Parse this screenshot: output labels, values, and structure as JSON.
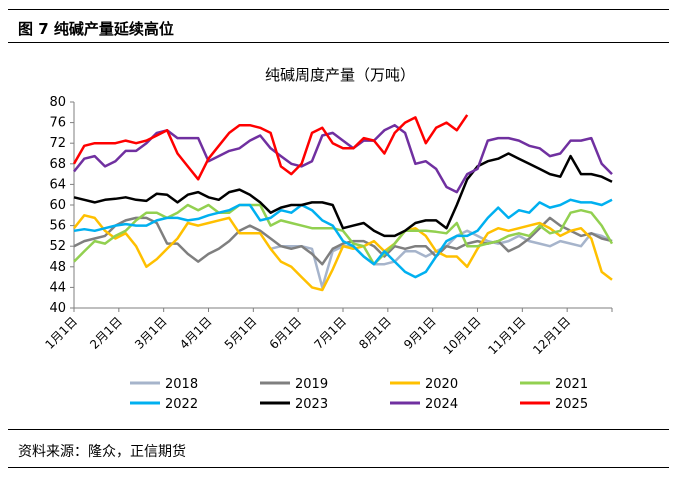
{
  "figure_label": "图 7   纯碱产量延续高位",
  "source": "资料来源：隆众，正信期货",
  "chart_data": {
    "type": "line",
    "title": "纯碱周度产量（万吨）",
    "xlabel": "",
    "ylabel": "",
    "ylim": [
      40,
      80
    ],
    "yticks": [
      40,
      44,
      48,
      52,
      56,
      60,
      64,
      68,
      72,
      76,
      80
    ],
    "xtick_labels": [
      "1月1日",
      "2月1日",
      "3月1日",
      "4月1日",
      "5月1日",
      "6月1日",
      "7月1日",
      "8月1日",
      "9月1日",
      "10月1日",
      "11月1日",
      "12月1日"
    ],
    "x_unit": "weekly observations across the calendar year",
    "grid": false,
    "legend_placement": "bottom",
    "series": [
      {
        "name": "2018",
        "color": "#a6b4cb",
        "values": [
          null,
          null,
          null,
          null,
          null,
          null,
          null,
          null,
          null,
          null,
          null,
          null,
          null,
          null,
          null,
          null,
          null,
          null,
          null,
          51.5,
          52,
          52,
          52,
          51.5,
          44,
          51,
          52,
          52,
          50,
          48.5,
          48.5,
          49,
          51,
          51,
          50,
          51,
          52,
          54,
          55,
          54,
          53,
          52.5,
          53,
          54,
          53,
          52.5,
          52,
          53,
          52.5,
          52,
          54.5,
          54,
          53
        ]
      },
      {
        "name": "2019",
        "color": "#7f7f7f",
        "values": [
          52,
          53,
          53.5,
          54,
          56,
          57,
          57.5,
          57.5,
          56.5,
          52.5,
          52.5,
          50.5,
          49,
          50.5,
          51.5,
          53,
          55,
          56,
          55,
          53.5,
          52,
          51.5,
          52,
          50.5,
          48.5,
          51.5,
          52.5,
          53,
          53,
          52,
          50,
          52,
          51.5,
          52,
          52,
          50,
          52,
          51.5,
          52.5,
          53,
          52.5,
          53,
          51,
          52,
          53.5,
          55.5,
          57.5,
          56,
          55,
          54,
          54.5,
          53.5,
          53
        ]
      },
      {
        "name": "2020",
        "color": "#ffc000",
        "values": [
          55.5,
          58,
          57.5,
          55,
          53.5,
          54.5,
          52,
          48,
          49.5,
          51.5,
          53.5,
          56.5,
          56,
          56.5,
          57,
          57.5,
          54.5,
          54.5,
          54.5,
          51.5,
          49,
          48,
          46,
          44,
          43.5,
          47.5,
          52,
          51.5,
          52,
          53,
          51,
          52.5,
          55,
          55.5,
          54,
          51,
          50,
          50,
          48,
          51.5,
          54.5,
          55.5,
          55,
          55.5,
          56,
          56.5,
          55.5,
          54,
          55,
          55.5,
          53.5,
          47,
          45.5
        ]
      },
      {
        "name": "2021",
        "color": "#92d050",
        "values": [
          49,
          51,
          53,
          52.5,
          54,
          55,
          57,
          58.5,
          58.5,
          57.5,
          58.5,
          60,
          59,
          60,
          58.5,
          58.5,
          60,
          60,
          60,
          56,
          57,
          56.5,
          56,
          55.5,
          55.5,
          55.5,
          55,
          52.5,
          52,
          48.5,
          50.5,
          52.5,
          55,
          55,
          55,
          54.8,
          54.5,
          56.5,
          52,
          52,
          52.5,
          53,
          54,
          54.5,
          54,
          56,
          54.5,
          55,
          58.5,
          59,
          58.5,
          56,
          52.5
        ]
      },
      {
        "name": "2022",
        "color": "#00b0f0",
        "values": [
          55,
          55.3,
          55,
          55.5,
          56,
          56.3,
          56,
          56,
          57,
          57.5,
          57.5,
          57,
          57.3,
          58,
          58.5,
          59,
          60,
          60,
          57,
          57.5,
          59,
          58.5,
          60,
          59,
          57,
          56,
          53,
          52,
          50,
          48.5,
          51,
          49,
          47,
          46,
          47,
          50,
          53,
          54,
          54,
          55,
          57.5,
          59.5,
          57.5,
          59,
          58.5,
          60.5,
          59.5,
          60,
          61,
          60.5,
          60.5,
          60,
          61
        ]
      },
      {
        "name": "2023",
        "color": "#000000",
        "values": [
          61.5,
          61,
          60.5,
          61,
          61.2,
          61.5,
          61,
          60.8,
          62.2,
          62,
          60.5,
          62,
          62.5,
          61.5,
          61,
          62.5,
          63,
          62,
          60.5,
          58.5,
          59.5,
          60,
          60,
          60.5,
          60.5,
          60,
          55.5,
          56,
          56.5,
          55,
          54,
          54,
          55,
          56.5,
          57,
          57,
          55.5,
          60,
          65,
          67.5,
          68.5,
          69,
          70,
          69,
          68,
          67,
          66,
          65.5,
          69.5,
          66,
          66,
          65.5,
          64.5
        ]
      },
      {
        "name": "2024",
        "color": "#7030a0",
        "values": [
          66.5,
          69,
          69.5,
          67.5,
          68.5,
          70.5,
          70.5,
          72,
          74,
          74.5,
          73,
          73,
          73,
          68.5,
          69.5,
          70.5,
          71,
          72.5,
          73.5,
          71,
          69.5,
          68,
          67.5,
          68.5,
          73.5,
          74,
          72.5,
          71,
          72.5,
          72.5,
          74.5,
          75.5,
          74,
          68,
          68.5,
          67,
          63.5,
          62.5,
          66,
          67,
          72.5,
          73,
          73,
          72.5,
          71.5,
          71,
          69.5,
          70,
          72.5,
          72.5,
          73,
          68,
          66
        ]
      },
      {
        "name": "2025",
        "color": "#ff0000",
        "values": [
          68,
          71.5,
          72,
          72,
          72,
          72.5,
          72,
          72.5,
          73.5,
          74.5,
          70,
          67.5,
          65,
          69,
          71.5,
          74,
          75.5,
          75.5,
          75,
          74,
          67.5,
          66,
          68,
          74,
          75,
          72,
          71,
          71,
          73,
          72.5,
          70,
          74,
          76,
          77,
          72,
          75,
          76,
          74.5,
          77.5
        ]
      }
    ]
  }
}
